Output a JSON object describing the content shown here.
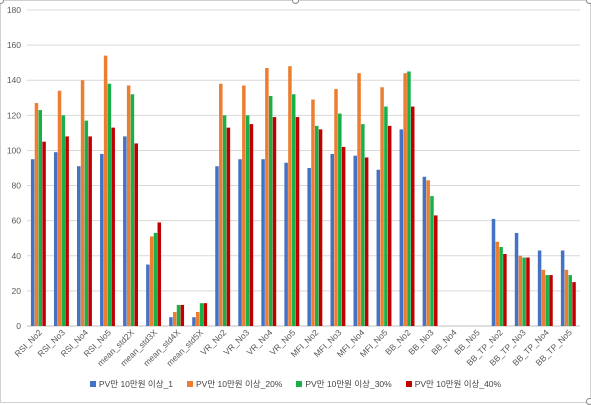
{
  "chart_data": {
    "type": "bar",
    "title": "",
    "xlabel": "",
    "ylabel": "",
    "ylim": [
      0,
      180
    ],
    "yticks": [
      0,
      20,
      40,
      60,
      80,
      100,
      120,
      140,
      160,
      180
    ],
    "grid": true,
    "legend_position": "bottom",
    "categories": [
      "RSI_No2",
      "RSI_No3",
      "RSI_No4",
      "RSI_No5",
      "mean_std2X",
      "mean_std3X",
      "mean_std4X",
      "mean_std5X",
      "VR_No2",
      "VR_No3",
      "VR_No4",
      "VR_No5",
      "MFI_No2",
      "MFI_No3",
      "MFI_No4",
      "MFI_No5",
      "BB_No2",
      "BB_No3",
      "BB_No4",
      "BB_No5",
      "BB_TP_No2",
      "BB_TP_No3",
      "BB_TP_No4",
      "BB_TP_No5"
    ],
    "series": [
      {
        "name": "PV만 10만원 이상_1",
        "color": "#4472c4",
        "values": [
          95,
          99,
          91,
          98,
          108,
          35,
          5,
          5,
          91,
          95,
          95,
          93,
          90,
          98,
          97,
          89,
          112,
          85,
          0,
          0,
          61,
          53,
          43,
          43
        ]
      },
      {
        "name": "PV만 10만원 이상_20%",
        "color": "#ed7d31",
        "values": [
          127,
          134,
          140,
          154,
          137,
          51,
          8,
          8,
          138,
          137,
          147,
          148,
          129,
          135,
          144,
          136,
          144,
          83,
          0,
          0,
          48,
          40,
          32,
          32
        ]
      },
      {
        "name": "PV만 10만원 이상_30%",
        "color": "#19b04a",
        "values": [
          123,
          120,
          117,
          138,
          132,
          53,
          12,
          13,
          120,
          120,
          131,
          132,
          114,
          121,
          115,
          125,
          145,
          74,
          0,
          0,
          45,
          39,
          29,
          29
        ]
      },
      {
        "name": "PV만 10만원 이상_40%",
        "color": "#c00000",
        "values": [
          105,
          108,
          108,
          113,
          104,
          59,
          12,
          13,
          113,
          115,
          119,
          119,
          112,
          102,
          96,
          114,
          125,
          63,
          0,
          0,
          41,
          39,
          29,
          25
        ]
      }
    ]
  }
}
